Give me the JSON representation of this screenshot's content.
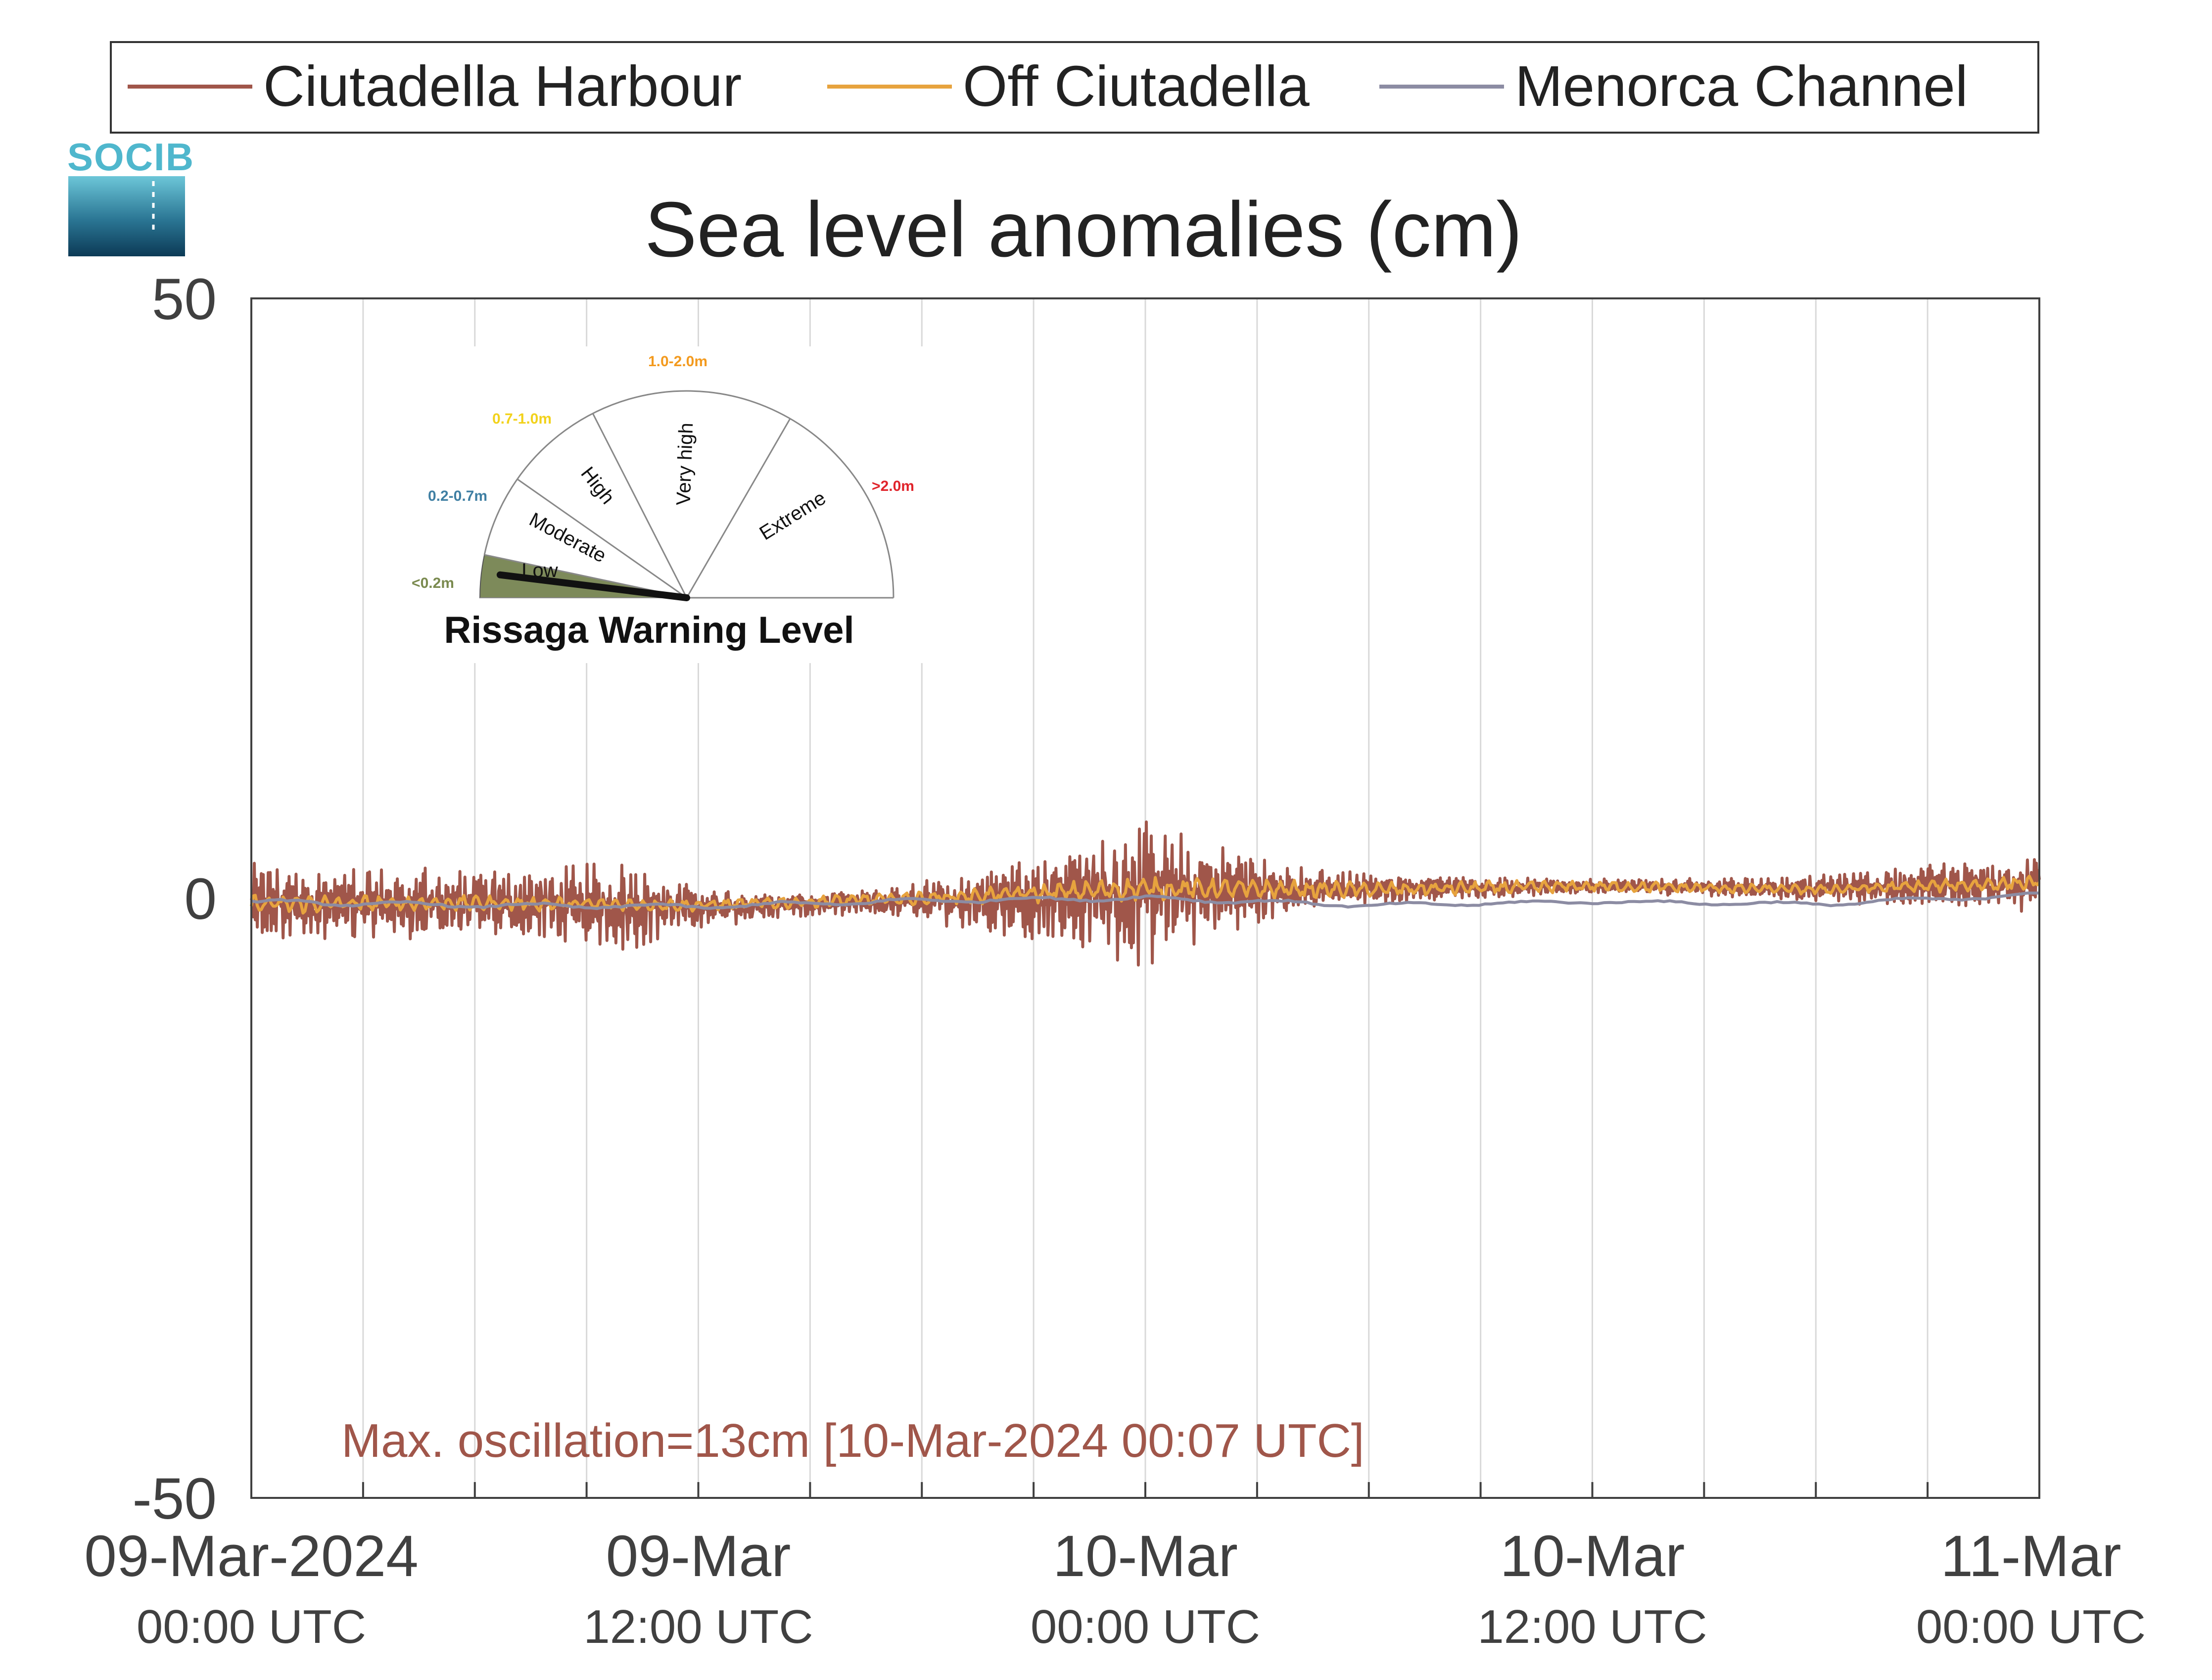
{
  "colors": {
    "ciutadella_harbour": "#a0564a",
    "off_ciutadella": "#e7a33e",
    "menorca_channel": "#8c8ca3",
    "axis": "#404040",
    "grid": "#d9d9d9",
    "annotation": "#a0564a",
    "logo_top": "#4fb7cd",
    "logo_bottom": "#0c3a56"
  },
  "logo": {
    "text": "SOCIB"
  },
  "legend": {
    "placement": "top",
    "entries": [
      "Ciutadella Harbour",
      "Off Ciutadella",
      "Menorca Channel"
    ]
  },
  "annotation": {
    "text": "Max. oscillation=13cm [10-Mar-2024 00:07 UTC]"
  },
  "gauge": {
    "title": "Rissaga Warning Level",
    "active_level": "Low",
    "levels": [
      {
        "name": "Low",
        "range": "<0.2m",
        "color": "#7a8a4f"
      },
      {
        "name": "Moderate",
        "range": "0.2-0.7m",
        "color": "#3f7fa3"
      },
      {
        "name": "High",
        "range": "0.7-1.0m",
        "color": "#f2d21b"
      },
      {
        "name": "Very high",
        "range": "1.0-2.0m",
        "color": "#f39a1e"
      },
      {
        "name": "Extreme",
        "range": ">2.0m",
        "color": "#e0242b"
      }
    ]
  },
  "chart_data": {
    "type": "line",
    "title": "Sea level anomalies (cm)",
    "xlabel": "",
    "ylabel": "",
    "ylim": [
      -50,
      50
    ],
    "xlim_hours": [
      0,
      48
    ],
    "yticks": [
      {
        "value": 50,
        "label": "50"
      },
      {
        "value": 0,
        "label": "0"
      },
      {
        "value": -50,
        "label": "-50"
      }
    ],
    "xticks": [
      {
        "hour": 0,
        "label": "09-Mar-2024",
        "sublabel": "00:00 UTC"
      },
      {
        "hour": 12,
        "label": "09-Mar",
        "sublabel": "12:00 UTC"
      },
      {
        "hour": 24,
        "label": "10-Mar",
        "sublabel": "00:00 UTC"
      },
      {
        "hour": 36,
        "label": "10-Mar",
        "sublabel": "12:00 UTC"
      },
      {
        "hour": 48,
        "label": "11-Mar",
        "sublabel": "00:00 UTC"
      }
    ],
    "grid_hours": [
      3,
      6,
      9,
      12,
      15,
      18,
      21,
      24,
      27,
      30,
      33,
      36,
      39,
      42,
      45
    ],
    "grid": true,
    "series": [
      {
        "name": "Ciutadella Harbour",
        "oscillation_envelope_hours": [
          0,
          2,
          4,
          6,
          8,
          10,
          12,
          14,
          16,
          18,
          20,
          21,
          22,
          23,
          24,
          25,
          26,
          27,
          28,
          30,
          32,
          34,
          36,
          38,
          40,
          42,
          44,
          46,
          48
        ],
        "oscillation_envelope_cm": [
          3.5,
          3.0,
          3.2,
          3.0,
          3.2,
          3.8,
          1.8,
          1.2,
          1.0,
          1.8,
          3.0,
          3.8,
          4.5,
          5.5,
          6.5,
          5.0,
          4.0,
          3.0,
          2.0,
          1.3,
          1.0,
          0.8,
          0.6,
          0.7,
          0.8,
          1.2,
          1.6,
          2.0,
          2.4
        ],
        "baseline_hours": [
          0,
          6,
          12,
          18,
          24,
          30,
          36,
          42,
          48
        ],
        "baseline_cm": [
          -0.5,
          -0.5,
          -0.8,
          -0.3,
          0.5,
          0.8,
          1.0,
          0.8,
          1.2
        ]
      },
      {
        "name": "Off Ciutadella",
        "oscillation_envelope_hours": [
          0,
          6,
          12,
          18,
          24,
          30,
          36,
          42,
          48
        ],
        "oscillation_envelope_cm": [
          1.0,
          0.8,
          0.6,
          0.8,
          1.2,
          0.8,
          0.6,
          0.5,
          0.8
        ],
        "baseline_hours": [
          0,
          6,
          12,
          18,
          24,
          30,
          36,
          42,
          48
        ],
        "baseline_cm": [
          -0.5,
          -0.4,
          -0.6,
          0.0,
          0.8,
          0.7,
          1.0,
          0.7,
          1.3
        ]
      },
      {
        "name": "Menorca Channel",
        "oscillation_envelope_hours": [
          0,
          12,
          24,
          36,
          48
        ],
        "oscillation_envelope_cm": [
          0.3,
          0.3,
          0.3,
          0.2,
          0.3
        ],
        "baseline_hours": [
          0,
          6,
          12,
          18,
          24,
          30,
          36,
          42,
          48
        ],
        "baseline_cm": [
          -0.3,
          -0.6,
          -0.7,
          -0.2,
          0.0,
          -0.6,
          -0.3,
          -0.5,
          0.3
        ]
      }
    ]
  }
}
